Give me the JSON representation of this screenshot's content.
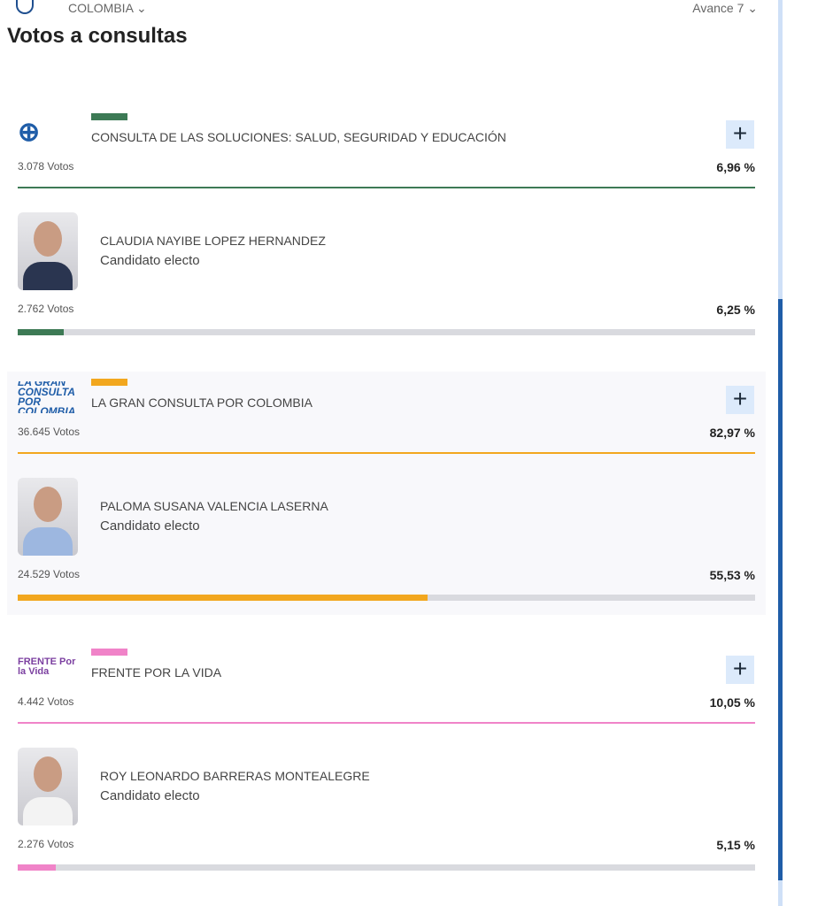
{
  "header": {
    "country": "COLOMBIA ⌄",
    "avance": "Avance 7 ⌄",
    "title": "Votos a consultas"
  },
  "consultas": [
    {
      "name": "CONSULTA DE LAS SOLUCIONES: SALUD, SEGURIDAD Y EDUCACIÓN",
      "votes": "3.078 Votos",
      "pct": "6,96 %",
      "color": "#3d7a55",
      "logo_text": "⊕",
      "candidate": {
        "name": "CLAUDIA NAYIBE LOPEZ HERNANDEZ",
        "status": "Candidato electo",
        "votes": "2.762 Votos",
        "pct": "6,25 %",
        "fill": 6.25
      }
    },
    {
      "name": "LA GRAN CONSULTA POR COLOMBIA",
      "votes": "36.645 Votos",
      "pct": "82,97 %",
      "color": "#f2a71e",
      "logo_text": "LA GRAN CONSULTA POR COLOMBIA",
      "candidate": {
        "name": "PALOMA SUSANA VALENCIA LASERNA",
        "status": "Candidato electo",
        "votes": "24.529 Votos",
        "pct": "55,53 %",
        "fill": 55.53
      }
    },
    {
      "name": "FRENTE POR LA VIDA",
      "votes": "4.442 Votos",
      "pct": "10,05 %",
      "color": "#f083c8",
      "logo_text": "FRENTE Por la Vida",
      "candidate": {
        "name": "ROY LEONARDO BARRERAS MONTEALEGRE",
        "status": "Candidato electo",
        "votes": "2.276 Votos",
        "pct": "5,15 %",
        "fill": 5.15
      }
    }
  ],
  "plus_label": "+"
}
